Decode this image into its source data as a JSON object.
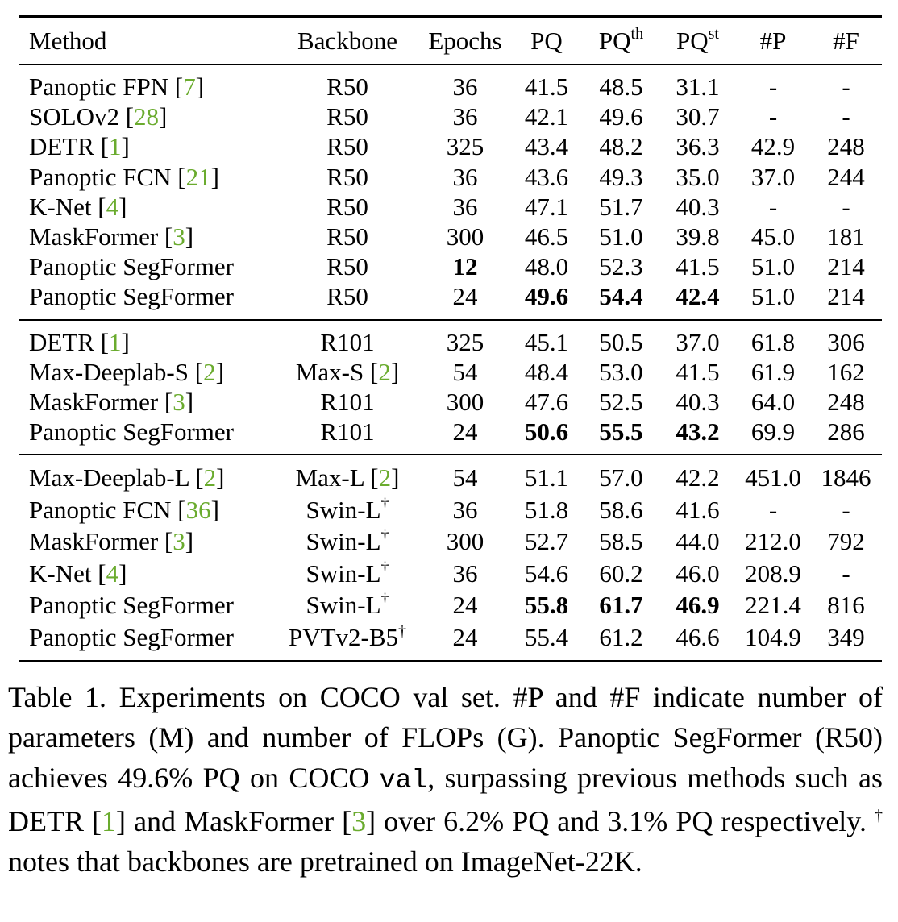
{
  "table": {
    "headers": {
      "method": "Method",
      "backbone": "Backbone",
      "epochs": "Epochs",
      "pq": "PQ",
      "pq_th_base": "PQ",
      "pq_th_sup": "th",
      "pq_st_base": "PQ",
      "pq_st_sup": "st",
      "params": "#P",
      "flops": "#F"
    },
    "sections": [
      [
        {
          "method": "Panoptic FPN ",
          "method_cite": "7",
          "backbone": "R50",
          "backbone_cite": null,
          "backbone_dagger": false,
          "epochs": "36",
          "pq": "41.5",
          "pq_th": "48.5",
          "pq_st": "31.1",
          "params": "-",
          "flops": "-"
        },
        {
          "method": "SOLOv2 ",
          "method_cite": "28",
          "backbone": "R50",
          "backbone_cite": null,
          "backbone_dagger": false,
          "epochs": "36",
          "pq": "42.1",
          "pq_th": "49.6",
          "pq_st": "30.7",
          "params": "-",
          "flops": "-"
        },
        {
          "method": "DETR ",
          "method_cite": "1",
          "backbone": "R50",
          "backbone_cite": null,
          "backbone_dagger": false,
          "epochs": "325",
          "pq": "43.4",
          "pq_th": "48.2",
          "pq_st": "36.3",
          "params": "42.9",
          "flops": "248"
        },
        {
          "method": "Panoptic FCN ",
          "method_cite": "21",
          "backbone": "R50",
          "backbone_cite": null,
          "backbone_dagger": false,
          "epochs": "36",
          "pq": "43.6",
          "pq_th": "49.3",
          "pq_st": "35.0",
          "params": "37.0",
          "flops": "244"
        },
        {
          "method": "K-Net ",
          "method_cite": "4",
          "backbone": "R50",
          "backbone_cite": null,
          "backbone_dagger": false,
          "epochs": "36",
          "pq": "47.1",
          "pq_th": "51.7",
          "pq_st": "40.3",
          "params": "-",
          "flops": "-"
        },
        {
          "method": "MaskFormer ",
          "method_cite": "3",
          "backbone": "R50",
          "backbone_cite": null,
          "backbone_dagger": false,
          "epochs": "300",
          "pq": "46.5",
          "pq_th": "51.0",
          "pq_st": "39.8",
          "params": "45.0",
          "flops": "181"
        },
        {
          "method": "Panoptic SegFormer",
          "method_cite": null,
          "backbone": "R50",
          "backbone_cite": null,
          "backbone_dagger": false,
          "epochs": "12",
          "epochs_bold": true,
          "pq": "48.0",
          "pq_th": "52.3",
          "pq_st": "41.5",
          "params": "51.0",
          "flops": "214"
        },
        {
          "method": "Panoptic SegFormer",
          "method_cite": null,
          "backbone": "R50",
          "backbone_cite": null,
          "backbone_dagger": false,
          "epochs": "24",
          "pq": "49.6",
          "pq_th": "54.4",
          "pq_st": "42.4",
          "params": "51.0",
          "flops": "214",
          "pq_bold": true
        }
      ],
      [
        {
          "method": "DETR ",
          "method_cite": "1",
          "backbone": "R101",
          "backbone_cite": null,
          "backbone_dagger": false,
          "epochs": "325",
          "pq": "45.1",
          "pq_th": "50.5",
          "pq_st": "37.0",
          "params": "61.8",
          "flops": "306"
        },
        {
          "method": "Max-Deeplab-S ",
          "method_cite": "2",
          "backbone": "Max-S ",
          "backbone_cite": "2",
          "backbone_dagger": false,
          "epochs": "54",
          "pq": "48.4",
          "pq_th": "53.0",
          "pq_st": "41.5",
          "params": "61.9",
          "flops": "162"
        },
        {
          "method": "MaskFormer ",
          "method_cite": "3",
          "backbone": "R101",
          "backbone_cite": null,
          "backbone_dagger": false,
          "epochs": "300",
          "pq": "47.6",
          "pq_th": "52.5",
          "pq_st": "40.3",
          "params": "64.0",
          "flops": "248"
        },
        {
          "method": "Panoptic SegFormer",
          "method_cite": null,
          "backbone": "R101",
          "backbone_cite": null,
          "backbone_dagger": false,
          "epochs": "24",
          "pq": "50.6",
          "pq_th": "55.5",
          "pq_st": "43.2",
          "params": "69.9",
          "flops": "286",
          "pq_bold": true
        }
      ],
      [
        {
          "method": "Max-Deeplab-L ",
          "method_cite": "2",
          "backbone": "Max-L ",
          "backbone_cite": "2",
          "backbone_dagger": false,
          "epochs": "54",
          "pq": "51.1",
          "pq_th": "57.0",
          "pq_st": "42.2",
          "params": "451.0",
          "flops": "1846"
        },
        {
          "method": "Panoptic FCN ",
          "method_cite": "36",
          "backbone": "Swin-L",
          "backbone_cite": null,
          "backbone_dagger": true,
          "epochs": "36",
          "pq": "51.8",
          "pq_th": "58.6",
          "pq_st": "41.6",
          "params": "-",
          "flops": "-"
        },
        {
          "method": "MaskFormer ",
          "method_cite": "3",
          "backbone": "Swin-L",
          "backbone_cite": null,
          "backbone_dagger": true,
          "epochs": "300",
          "pq": "52.7",
          "pq_th": "58.5",
          "pq_st": "44.0",
          "params": "212.0",
          "flops": "792"
        },
        {
          "method": "K-Net ",
          "method_cite": "4",
          "backbone": "Swin-L",
          "backbone_cite": null,
          "backbone_dagger": true,
          "epochs": "36",
          "pq": "54.6",
          "pq_th": "60.2",
          "pq_st": "46.0",
          "params": "208.9",
          "flops": "-"
        },
        {
          "method": "Panoptic SegFormer",
          "method_cite": null,
          "backbone": "Swin-L",
          "backbone_cite": null,
          "backbone_dagger": true,
          "epochs": "24",
          "pq": "55.8",
          "pq_th": "61.7",
          "pq_st": "46.9",
          "params": "221.4",
          "flops": "816",
          "pq_bold": true
        },
        {
          "method": "Panoptic SegFormer",
          "method_cite": null,
          "backbone": "PVTv2-B5",
          "backbone_cite": null,
          "backbone_dagger": true,
          "epochs": "24",
          "pq": "55.4",
          "pq_th": "61.2",
          "pq_st": "46.6",
          "params": "104.9",
          "flops": "349"
        }
      ]
    ],
    "dagger_symbol": "†"
  },
  "caption": {
    "parts": [
      {
        "text": "Table 1. Experiments on COCO val set. #P and #F indicate number of parameters (M) and number of FLOPs (G). Panoptic SegFormer (R50) achieves 49.6% PQ on COCO ",
        "style": "normal"
      },
      {
        "text": "val",
        "style": "mono"
      },
      {
        "text": ", surpassing previous methods such as DETR [",
        "style": "normal"
      },
      {
        "text": "1",
        "style": "cite"
      },
      {
        "text": "] and MaskFormer [",
        "style": "normal"
      },
      {
        "text": "3",
        "style": "cite"
      },
      {
        "text": "] over 6.2% PQ and 3.1% PQ respectively. ",
        "style": "normal"
      },
      {
        "text": "†",
        "style": "sup"
      },
      {
        "text": " notes that backbones are pretrained on ImageNet-22K.",
        "style": "normal"
      }
    ]
  },
  "colors": {
    "citation": "#6aab2e",
    "text": "#000000",
    "background": "#ffffff"
  }
}
